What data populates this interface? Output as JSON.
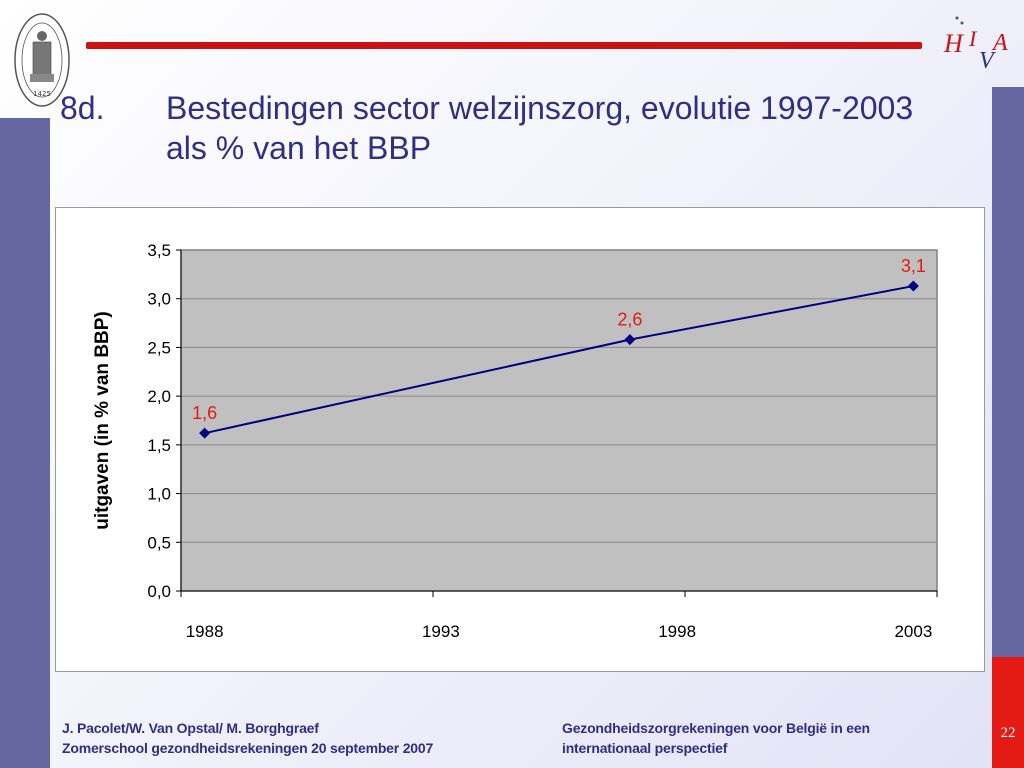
{
  "slide": {
    "number": "8d.",
    "title": "Bestedingen sector welzijnszorg, evolutie 1997-2003 als % van het BBP",
    "page_number": "22",
    "seal_year": "1425"
  },
  "logo": {
    "letters": [
      "H",
      "I",
      "V",
      "A"
    ]
  },
  "footer": {
    "left_line1": "J. Pacolet/W. Van Opstal/ M. Borghgraef",
    "left_line2": "Zomerschool gezondheidsrekeningen 20 september 2007",
    "right_line1": "Gezondheidszorgrekeningen voor België in een",
    "right_line2": "internationaal perspectief"
  },
  "colors": {
    "title": "#2e2f85",
    "side_bars": "#6667a0",
    "rule": "#cc1111",
    "plot_bg": "#c0c0c0",
    "series_line": "#000080",
    "data_label": "#e31b14"
  },
  "chart_data": {
    "type": "line",
    "title": "",
    "xlabel": "",
    "ylabel": "uitgaven (in % van BBP)",
    "x_ticks": [
      "1988",
      "1993",
      "1998",
      "2003"
    ],
    "xlim": [
      1987.5,
      2003.5
    ],
    "y_ticks": [
      "0,0",
      "0,5",
      "1,0",
      "1,5",
      "2,0",
      "2,5",
      "3,0",
      "3,5"
    ],
    "ylim": [
      0,
      3.5
    ],
    "grid": true,
    "legend": "none",
    "series": [
      {
        "x": [
          1988,
          1997,
          2003
        ],
        "values": [
          1.62,
          2.58,
          3.13
        ],
        "data_labels": [
          "1,6",
          "2,6",
          "3,1"
        ]
      }
    ]
  }
}
